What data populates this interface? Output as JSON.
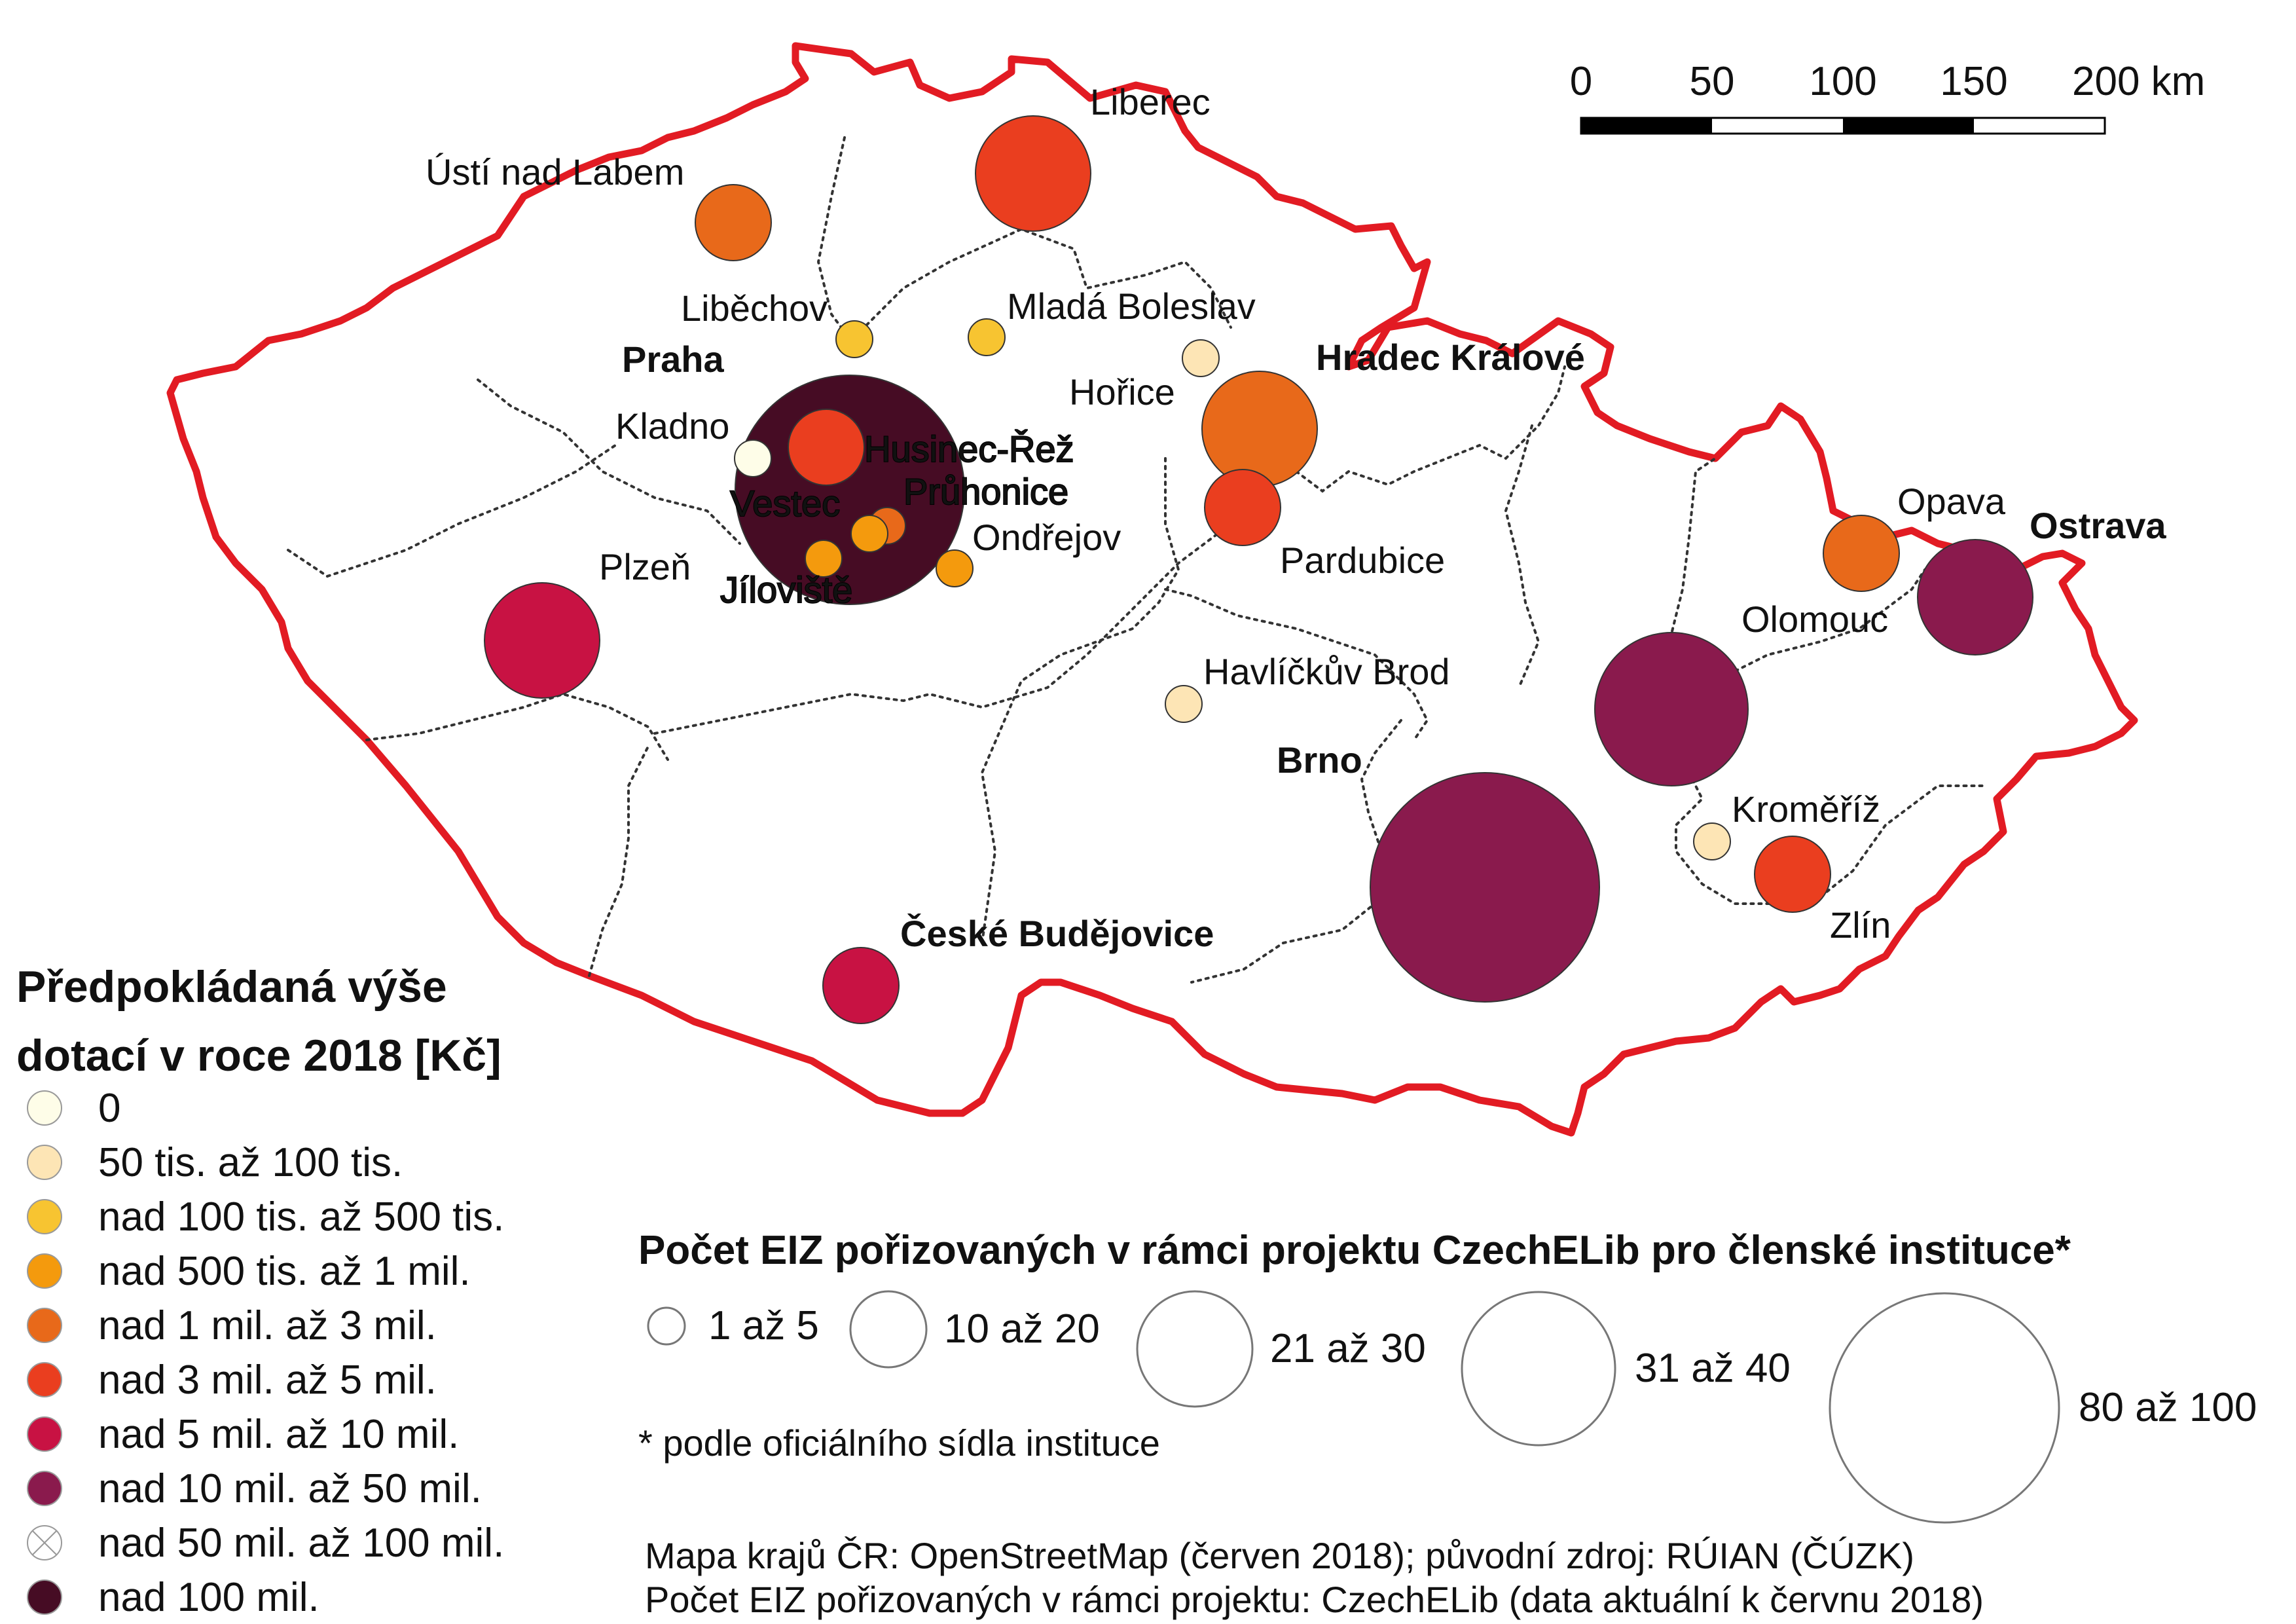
{
  "scalebar": {
    "ticks": [
      "0",
      "50",
      "100",
      "150",
      "200 km"
    ]
  },
  "cities": [
    {
      "name": "Liberec",
      "bold": false,
      "fill": "#ea3e1f"
    },
    {
      "name": "Ústí nad Labem",
      "bold": false,
      "fill": "#e8691a"
    },
    {
      "name": "Liběchov",
      "bold": false,
      "fill": "#f7c431"
    },
    {
      "name": "Mladá Boleslav",
      "bold": false,
      "fill": "#f7c431"
    },
    {
      "name": "Hořice",
      "bold": false,
      "fill": "#fde5b5"
    },
    {
      "name": "Hradec Králové",
      "bold": true,
      "fill": "#e8691a"
    },
    {
      "name": "Praha",
      "bold": true,
      "fill": "#460c24"
    },
    {
      "name": "Kladno",
      "bold": false,
      "fill": "#fefde8"
    },
    {
      "name": "Husinec-Řež",
      "bold": false,
      "fill": "#ea3e1f"
    },
    {
      "name": "Vestec",
      "bold": false,
      "fill": "#f49a0d"
    },
    {
      "name": "Průhonice",
      "bold": false,
      "fill": "#e8691a"
    },
    {
      "name": "Ondřejov",
      "bold": false,
      "fill": "#f49a0d"
    },
    {
      "name": "Jíloviště",
      "bold": false,
      "fill": "#f49a0d"
    },
    {
      "name": "Pardubice",
      "bold": false,
      "fill": "#ea3e1f"
    },
    {
      "name": "Plzeň",
      "bold": false,
      "fill": "#c81243"
    },
    {
      "name": "Havlíčkův Brod",
      "bold": false,
      "fill": "#fde5b5"
    },
    {
      "name": "Opava",
      "bold": false,
      "fill": "#e8691a"
    },
    {
      "name": "Ostrava",
      "bold": true,
      "fill": "#8a1a4d"
    },
    {
      "name": "Olomouc",
      "bold": false,
      "fill": "#8a1a4d"
    },
    {
      "name": "Brno",
      "bold": true,
      "fill": "#8a1a4d"
    },
    {
      "name": "Kroměříž",
      "bold": false,
      "fill": "#fde5b5"
    },
    {
      "name": "Zlín",
      "bold": false,
      "fill": "#ea3e1f"
    },
    {
      "name": "České Budějovice",
      "bold": true,
      "fill": "#c81243"
    }
  ],
  "color_legend": {
    "title_line1": "Předpokládaná výše",
    "title_line2": "dotací v roce 2018 [Kč]",
    "items": [
      {
        "label": "0",
        "color": "#fefde8"
      },
      {
        "label": "50 tis. až 100 tis.",
        "color": "#fde5b5"
      },
      {
        "label": "nad 100 tis. až 500 tis.",
        "color": "#f7c431"
      },
      {
        "label": "nad 500 tis. až 1 mil.",
        "color": "#f49a0d"
      },
      {
        "label": "nad 1 mil. až 3 mil.",
        "color": "#e8691a"
      },
      {
        "label": "nad 3 mil. až 5 mil.",
        "color": "#ea3e1f"
      },
      {
        "label": "nad 5 mil. až 10 mil.",
        "color": "#c81243"
      },
      {
        "label": "nad 10 mil. až 50 mil.",
        "color": "#8a1a4d"
      },
      {
        "label": "nad 50 mil. až 100 mil.",
        "color": "none"
      },
      {
        "label": "nad 100 mil.",
        "color": "#460c24"
      }
    ]
  },
  "size_legend": {
    "title": "Počet EIZ pořizovaných v rámci projektu CzechELib pro členské instituce*",
    "items": [
      "1 až 5",
      "10 až 20",
      "21 až 30",
      "31 až 40",
      "80 až 100"
    ],
    "footnote": "* podle oficiálního sídla instituce"
  },
  "sources": [
    "Mapa krajů ČR: OpenStreetMap (červen 2018); původní zdroj: RÚIAN (ČÚZK)",
    "Počet EIZ pořizovaných v rámci projektu: CzechELib (data aktuální k červnu 2018)"
  ],
  "colors": {
    "border": "#e21b23",
    "regions": "#333333"
  }
}
